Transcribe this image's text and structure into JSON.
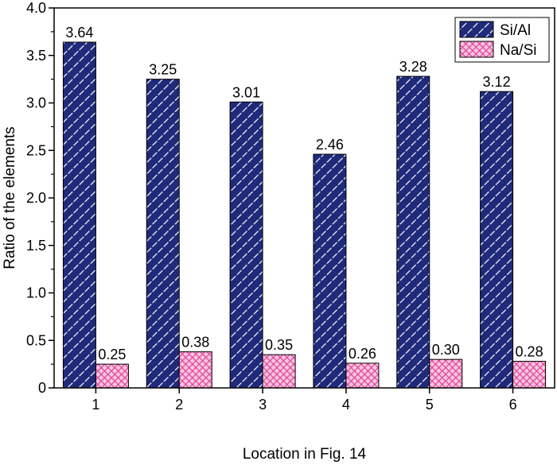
{
  "chart_data": {
    "type": "bar",
    "categories": [
      "1",
      "2",
      "3",
      "4",
      "5",
      "6"
    ],
    "series": [
      {
        "name": "Si/Al",
        "values": [
          3.64,
          3.25,
          3.01,
          2.46,
          3.28,
          3.12
        ],
        "labels": [
          "3.64",
          "3.25",
          "3.01",
          "2.46",
          "3.28",
          "3.12"
        ],
        "color": "#1f2a7a",
        "pattern": "diagonal-hatch"
      },
      {
        "name": "Na/Si",
        "values": [
          0.25,
          0.38,
          0.35,
          0.26,
          0.3,
          0.28
        ],
        "labels": [
          "0.25",
          "0.38",
          "0.35",
          "0.26",
          "0.30",
          "0.28"
        ],
        "color": "#e0409a",
        "pattern": "crosshatch"
      }
    ],
    "title": "",
    "xlabel": "Location in Fig. 14",
    "ylabel": "Ratio of the elements",
    "ylim": [
      0,
      4.0
    ],
    "yticks": [
      "0",
      "0.5",
      "1.0",
      "1.5",
      "2.0",
      "2.5",
      "3.0",
      "3.5",
      "4.0"
    ],
    "grid": false,
    "legend_position": "top-right"
  }
}
